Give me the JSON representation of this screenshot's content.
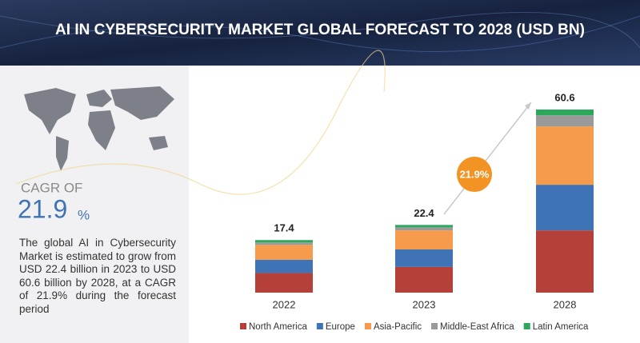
{
  "chart_data": {
    "type": "stacked_bar",
    "title": "AI IN CYBERSECURITY MARKET GLOBAL FORECAST TO 2028 (USD BN)",
    "categories": [
      "2022",
      "2023",
      "2028"
    ],
    "totals": [
      17.4,
      22.4,
      60.6
    ],
    "series": [
      {
        "name": "North America",
        "color": "#b5403a",
        "values": [
          6.5,
          8.5,
          20.6
        ]
      },
      {
        "name": "Europe",
        "color": "#3f73b5",
        "values": [
          4.4,
          5.8,
          15.1
        ]
      },
      {
        "name": "Asia-Pacific",
        "color": "#f59b4b",
        "values": [
          4.9,
          6.3,
          19.3
        ]
      },
      {
        "name": "Middle-East Africa",
        "color": "#9a9a9a",
        "values": [
          0.8,
          1.0,
          3.7
        ]
      },
      {
        "name": "Latin America",
        "color": "#2ca85a",
        "values": [
          0.8,
          0.8,
          1.9
        ]
      }
    ],
    "annotation": "21.9%"
  },
  "sidebar": {
    "cagr_label": "CAGR OF",
    "cagr_value": "21.9",
    "cagr_unit": "%",
    "description": "The global AI in Cybersecurity Market is estimated to grow from USD 22.4 billion in 2023 to USD 60.6 billion by 2028, at a CAGR of 21.9% during the forecast period"
  }
}
